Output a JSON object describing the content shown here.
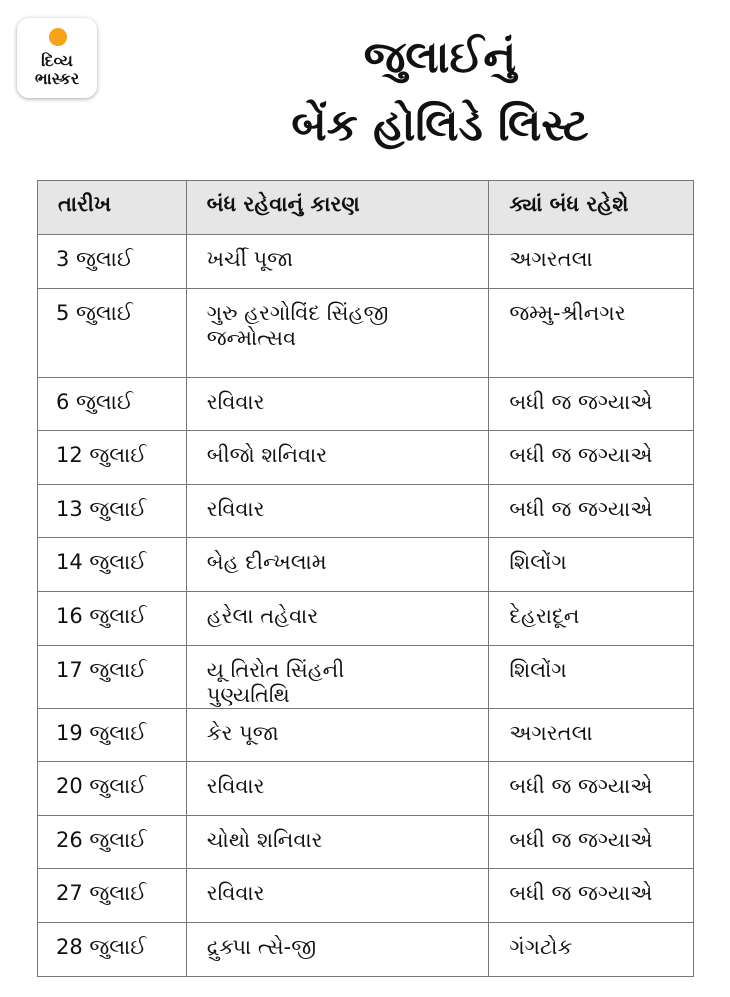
{
  "logo": {
    "line1": "દિવ્ય",
    "line2": "ભાસ્કર",
    "sun_color": "#f7a21b"
  },
  "title": {
    "line1": "જુલાઈનું",
    "line2": "બેંક હોલિડે લિસ્ટ"
  },
  "table": {
    "headers": [
      "તારીખ",
      "બંધ રહેવાનું કારણ",
      "ક્યાં બંધ રહેશે"
    ],
    "header_bg": "#e6e6e6",
    "rows": [
      {
        "date": "3 જુલાઈ",
        "reason": "ખર્ચી પૂજા",
        "place": "અગરતલા"
      },
      {
        "date": "5 જુલાઈ",
        "reason": "ગુરુ હરગોવિંદ સિંહજી જન્મોત્સવ",
        "place": "જમ્મુ-શ્રીનગર"
      },
      {
        "date": "6 જુલાઈ",
        "reason": "રવિવાર",
        "place": "બધી જ જગ્યાએ"
      },
      {
        "date": "12 જુલાઈ",
        "reason": "બીજો શનિવાર",
        "place": "બધી જ જગ્યાએ"
      },
      {
        "date": "13 જુલાઈ",
        "reason": "રવિવાર",
        "place": "બધી જ જગ્યાએ"
      },
      {
        "date": "14 જુલાઈ",
        "reason": "બેહ દીન્ખલામ",
        "place": "શિલોંગ"
      },
      {
        "date": "16 જુલાઈ",
        "reason": "હરેલા તહેવાર",
        "place": "દેહરાદૂન"
      },
      {
        "date": "17 જુલાઈ",
        "reason": "યૂ તિરોત સિંહની પુણ્યતિથિ",
        "place": "શિલોંગ"
      },
      {
        "date": "19 જુલાઈ",
        "reason": "કેર પૂજા",
        "place": "અગરતલા"
      },
      {
        "date": "20 જુલાઈ",
        "reason": "રવિવાર",
        "place": "બધી જ જગ્યાએ"
      },
      {
        "date": "26 જુલાઈ",
        "reason": "ચોથો શનિવાર",
        "place": "બધી જ જગ્યાએ"
      },
      {
        "date": "27 જુલાઈ",
        "reason": "રવિવાર",
        "place": "બધી જ જગ્યાએ"
      },
      {
        "date": "28 જુલાઈ",
        "reason": "દ્રુક્પા ત્સે-જી",
        "place": "ગંગટોક"
      }
    ]
  }
}
